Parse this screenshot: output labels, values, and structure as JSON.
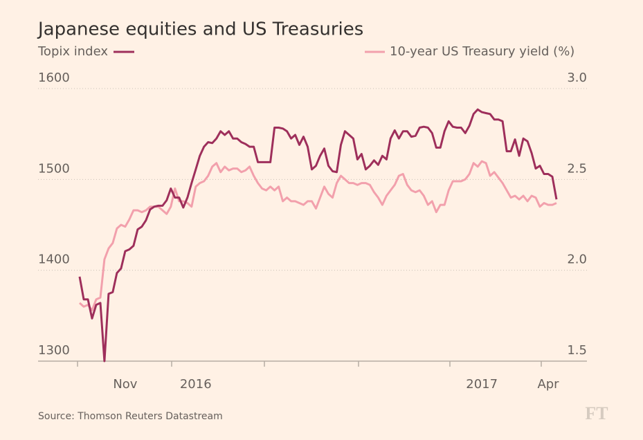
{
  "chart_data": {
    "type": "line",
    "title": "Japanese equities and US Treasuries",
    "source": "Source: Thomson Reuters Datastream",
    "logo": "FT",
    "categories": [
      null,
      null,
      null,
      null,
      null,
      null,
      null,
      null,
      null,
      null,
      null,
      "Nov",
      null,
      null,
      null,
      null,
      null,
      null,
      null,
      null,
      null,
      null,
      null,
      null,
      null,
      null,
      null,
      null,
      "2016",
      null,
      null,
      null,
      null,
      null,
      null,
      null,
      null,
      null,
      null,
      null,
      null,
      null,
      null,
      null,
      null,
      null,
      null,
      null,
      null,
      null,
      null,
      null,
      null,
      null,
      null,
      null,
      null,
      null,
      null,
      null,
      null,
      null,
      null,
      null,
      null,
      null,
      null,
      null,
      null,
      null,
      null,
      null,
      null,
      null,
      null,
      null,
      null,
      null,
      null,
      null,
      null,
      null,
      null,
      null,
      null,
      null,
      null,
      null,
      null,
      null,
      null,
      null,
      null,
      null,
      null,
      null,
      null,
      "2017",
      null,
      null,
      null,
      null,
      null,
      null,
      null,
      null,
      null,
      null,
      null,
      null,
      null,
      null,
      null,
      "Apr",
      null,
      null
    ],
    "series": [
      {
        "name": "Topix index",
        "color": "#9e2f5b",
        "axis": "y",
        "values": [
          1393,
          1368,
          1368,
          1347,
          1362,
          1364,
          1300,
          1374,
          1376,
          1397,
          1402,
          1421,
          1423,
          1427,
          1445,
          1448,
          1455,
          1467,
          1470,
          1471,
          1471,
          1477,
          1490,
          1480,
          1480,
          1469,
          1480,
          1496,
          1511,
          1526,
          1536,
          1541,
          1540,
          1545,
          1553,
          1549,
          1553,
          1545,
          1545,
          1541,
          1539,
          1536,
          1536,
          1519,
          1519,
          1519,
          1519,
          1557,
          1557,
          1556,
          1553,
          1545,
          1549,
          1538,
          1547,
          1536,
          1511,
          1515,
          1526,
          1534,
          1515,
          1509,
          1508,
          1538,
          1553,
          1549,
          1545,
          1522,
          1528,
          1511,
          1515,
          1521,
          1516,
          1526,
          1522,
          1545,
          1554,
          1545,
          1553,
          1553,
          1547,
          1548,
          1557,
          1558,
          1557,
          1551,
          1535,
          1535,
          1553,
          1564,
          1558,
          1557,
          1557,
          1551,
          1559,
          1572,
          1577,
          1574,
          1573,
          1572,
          1566,
          1566,
          1564,
          1531,
          1531,
          1544,
          1526,
          1545,
          1542,
          1529,
          1512,
          1515,
          1506,
          1506,
          1503,
          1478
        ]
      },
      {
        "name": "10-year US Treasury yield (%)",
        "color": "#f2a0ac",
        "axis": "y2",
        "values": [
          1.82,
          1.8,
          1.81,
          1.78,
          1.84,
          1.85,
          2.06,
          2.12,
          2.15,
          2.23,
          2.25,
          2.24,
          2.28,
          2.33,
          2.33,
          2.32,
          2.33,
          2.35,
          2.35,
          2.35,
          2.33,
          2.31,
          2.35,
          2.45,
          2.38,
          2.38,
          2.37,
          2.35,
          2.46,
          2.48,
          2.49,
          2.52,
          2.57,
          2.59,
          2.54,
          2.57,
          2.55,
          2.56,
          2.56,
          2.54,
          2.55,
          2.57,
          2.52,
          2.48,
          2.45,
          2.44,
          2.46,
          2.44,
          2.46,
          2.38,
          2.4,
          2.38,
          2.38,
          2.37,
          2.36,
          2.38,
          2.38,
          2.34,
          2.4,
          2.46,
          2.42,
          2.4,
          2.48,
          2.52,
          2.5,
          2.48,
          2.48,
          2.47,
          2.48,
          2.48,
          2.47,
          2.43,
          2.4,
          2.36,
          2.41,
          2.44,
          2.47,
          2.52,
          2.53,
          2.47,
          2.44,
          2.43,
          2.44,
          2.41,
          2.36,
          2.38,
          2.32,
          2.36,
          2.36,
          2.44,
          2.49,
          2.49,
          2.49,
          2.5,
          2.53,
          2.59,
          2.57,
          2.6,
          2.59,
          2.52,
          2.54,
          2.51,
          2.48,
          2.44,
          2.4,
          2.41,
          2.39,
          2.41,
          2.38,
          2.41,
          2.4,
          2.35,
          2.37,
          2.36,
          2.36,
          2.37
        ]
      }
    ],
    "ylim": [
      1300,
      1600
    ],
    "yticks": [
      1300,
      1400,
      1500,
      1600
    ],
    "y2lim": [
      1.5,
      3
    ],
    "y2ticks": [
      1.5,
      {
        "value": 2,
        "label": "2.0"
      },
      2.5,
      {
        "value": 3,
        "label": "3.0"
      }
    ],
    "grid": true
  }
}
